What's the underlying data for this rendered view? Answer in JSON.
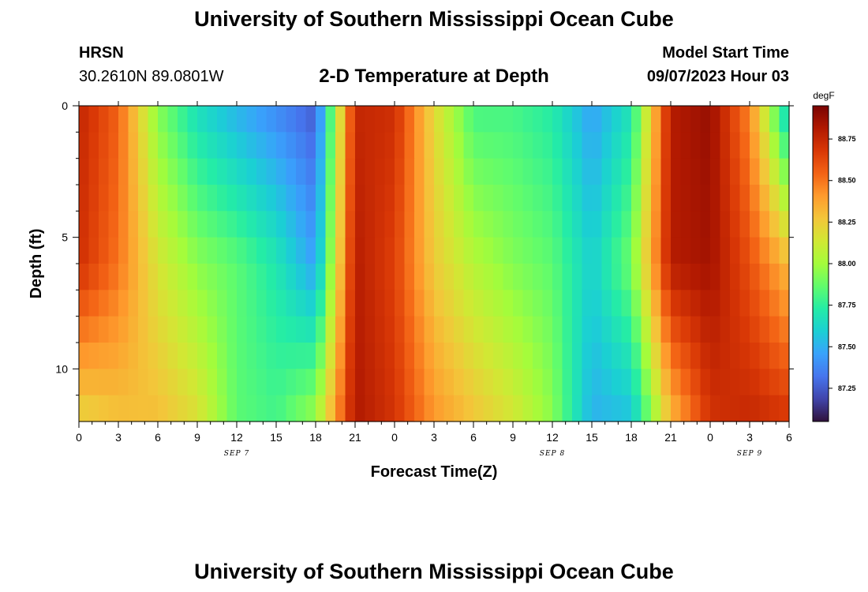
{
  "header": {
    "title": "University of Southern Mississippi Ocean Cube",
    "station": "HRSN",
    "coordinates": "30.2610N  89.0801W",
    "subtitle": "2-D Temperature at Depth",
    "model_start_label": "Model Start Time",
    "model_start_value": "09/07/2023 Hour 03"
  },
  "footer": {
    "title": "University of Southern Mississippi Ocean Cube"
  },
  "colors": {
    "background": "#ffffff",
    "colormap": [
      "#30123b",
      "#4145ab",
      "#4675ed",
      "#39a2fc",
      "#1bcfd4",
      "#24eca6",
      "#61fc6c",
      "#a4fc3b",
      "#d1e834",
      "#f3c63a",
      "#fe9b2d",
      "#f36315",
      "#d93806",
      "#b11901",
      "#7a0403"
    ]
  },
  "chart_data": {
    "type": "heatmap",
    "title": "2-D Temperature at Depth",
    "xlabel": "Forecast Time(Z)",
    "ylabel": "Depth (ft)",
    "x_range_hours": [
      0,
      54
    ],
    "y_range_ft": [
      0,
      12
    ],
    "y_inverted": true,
    "x_ticks": [
      "0",
      "3",
      "6",
      "9",
      "12",
      "15",
      "18",
      "21",
      "0",
      "3",
      "6",
      "9",
      "12",
      "15",
      "18",
      "21",
      "0",
      "3",
      "6"
    ],
    "y_ticks": [
      "0",
      "5",
      "10"
    ],
    "day_labels": [
      {
        "label": "SEP 7",
        "hour": 12
      },
      {
        "label": "SEP 8",
        "hour": 36
      },
      {
        "label": "SEP 9",
        "hour": 51
      }
    ],
    "colorbar": {
      "unit": "degF",
      "range": [
        87.05,
        88.95
      ],
      "ticks": [
        "87.25",
        "87.50",
        "87.75",
        "88.00",
        "88.25",
        "88.50",
        "88.75"
      ]
    },
    "depths_ft": [
      0,
      1,
      2,
      3,
      4,
      5,
      6,
      7,
      8,
      9,
      10,
      11,
      12
    ],
    "forecast_hours": [
      0,
      3,
      6,
      9,
      12,
      15,
      18,
      21,
      24,
      27,
      30,
      33,
      36,
      39,
      42,
      45,
      48,
      51,
      54
    ],
    "values_surface_degF": [
      88.76,
      88.55,
      87.93,
      87.65,
      87.5,
      87.38,
      87.25,
      88.75,
      88.72,
      88.2,
      87.8,
      87.8,
      87.72,
      87.45,
      87.68,
      88.8,
      88.88,
      88.45,
      87.55
    ],
    "values_mid_degF": [
      88.72,
      88.5,
      88.15,
      87.95,
      87.85,
      87.7,
      87.45,
      88.8,
      88.65,
      88.25,
      88.05,
      87.93,
      87.85,
      87.6,
      87.9,
      88.8,
      88.85,
      88.6,
      88.3
    ],
    "values_bottom_degF": [
      88.2,
      88.28,
      88.3,
      88.18,
      87.85,
      87.8,
      88.0,
      88.82,
      88.7,
      88.42,
      88.28,
      88.15,
      87.95,
      87.5,
      87.55,
      88.3,
      88.7,
      88.75,
      88.7
    ]
  }
}
